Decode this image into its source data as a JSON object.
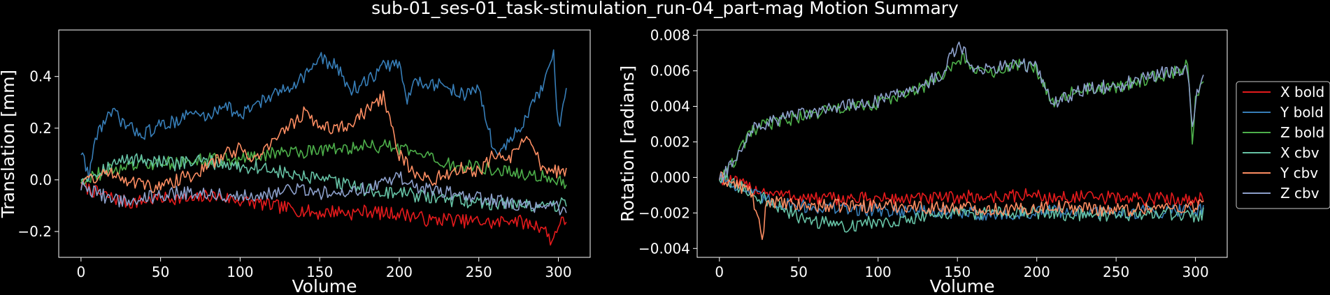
{
  "figure": {
    "title": "sub-01_ses-01_task-stimulation_run-04_part-mag Motion Summary"
  },
  "legend": {
    "placement": "right",
    "entries": [
      {
        "label": "X bold",
        "color": "#e41a1c"
      },
      {
        "label": "Y bold",
        "color": "#377eb8"
      },
      {
        "label": "Z bold",
        "color": "#4daf4a"
      },
      {
        "label": "X cbv",
        "color": "#66c2a5"
      },
      {
        "label": "Y cbv",
        "color": "#fc8d62"
      },
      {
        "label": "Z cbv",
        "color": "#8da0cb"
      }
    ]
  },
  "chart_data": [
    {
      "type": "line",
      "xlabel": "Volume",
      "ylabel": "Translation [mm]",
      "xlim": [
        -14,
        320
      ],
      "ylim": [
        -0.3,
        0.58
      ],
      "xticks": [
        0,
        50,
        100,
        150,
        200,
        250,
        300
      ],
      "yticks": [
        -0.2,
        0.0,
        0.2,
        0.4
      ],
      "ytick_labels": [
        "−0.2",
        "0.0",
        "0.2",
        "0.4"
      ],
      "grid": false,
      "x_range": [
        0,
        305
      ],
      "series": [
        {
          "name": "X bold",
          "color": "#e41a1c",
          "x": [
            0,
            10,
            20,
            30,
            40,
            50,
            60,
            70,
            80,
            90,
            100,
            110,
            120,
            130,
            140,
            150,
            160,
            170,
            180,
            190,
            200,
            210,
            220,
            230,
            240,
            250,
            260,
            270,
            280,
            290,
            296,
            300,
            305
          ],
          "y": [
            -0.02,
            -0.05,
            -0.07,
            -0.09,
            -0.08,
            -0.07,
            -0.07,
            -0.08,
            -0.06,
            -0.07,
            -0.08,
            -0.09,
            -0.1,
            -0.11,
            -0.12,
            -0.13,
            -0.12,
            -0.13,
            -0.12,
            -0.13,
            -0.13,
            -0.14,
            -0.16,
            -0.15,
            -0.16,
            -0.16,
            -0.17,
            -0.15,
            -0.17,
            -0.18,
            -0.24,
            -0.17,
            -0.16
          ]
        },
        {
          "name": "Y bold",
          "color": "#377eb8",
          "x": [
            0,
            5,
            10,
            15,
            20,
            30,
            40,
            50,
            60,
            70,
            80,
            90,
            100,
            110,
            120,
            130,
            140,
            150,
            160,
            170,
            180,
            190,
            200,
            205,
            210,
            220,
            230,
            240,
            250,
            260,
            270,
            280,
            290,
            297,
            300,
            305
          ],
          "y": [
            0.11,
            0.02,
            0.18,
            0.23,
            0.26,
            0.2,
            0.18,
            0.21,
            0.23,
            0.26,
            0.24,
            0.3,
            0.24,
            0.3,
            0.32,
            0.36,
            0.4,
            0.47,
            0.44,
            0.35,
            0.38,
            0.44,
            0.45,
            0.3,
            0.39,
            0.37,
            0.36,
            0.33,
            0.35,
            0.1,
            0.15,
            0.24,
            0.36,
            0.48,
            0.2,
            0.33
          ]
        },
        {
          "name": "Z bold",
          "color": "#4daf4a",
          "x": [
            0,
            10,
            20,
            30,
            40,
            50,
            60,
            70,
            80,
            90,
            100,
            110,
            120,
            130,
            140,
            150,
            160,
            170,
            180,
            190,
            200,
            210,
            220,
            230,
            240,
            250,
            260,
            270,
            280,
            290,
            300,
            305
          ],
          "y": [
            0.0,
            0.02,
            0.04,
            0.05,
            0.06,
            0.06,
            0.07,
            0.07,
            0.08,
            0.08,
            0.08,
            0.09,
            0.1,
            0.11,
            0.11,
            0.12,
            0.12,
            0.12,
            0.13,
            0.13,
            0.12,
            0.1,
            0.08,
            0.06,
            0.05,
            0.05,
            0.04,
            0.03,
            0.02,
            0.01,
            0.0,
            -0.02
          ]
        },
        {
          "name": "X cbv",
          "color": "#66c2a5",
          "x": [
            0,
            10,
            20,
            30,
            40,
            50,
            60,
            70,
            80,
            90,
            100,
            110,
            120,
            130,
            140,
            150,
            160,
            170,
            180,
            190,
            200,
            210,
            220,
            230,
            240,
            250,
            260,
            270,
            280,
            290,
            300,
            305
          ],
          "y": [
            0.01,
            0.03,
            0.06,
            0.08,
            0.08,
            0.07,
            0.06,
            0.07,
            0.07,
            0.06,
            0.05,
            0.05,
            0.04,
            0.02,
            0.01,
            0.0,
            -0.01,
            -0.02,
            -0.04,
            -0.05,
            -0.05,
            -0.06,
            -0.07,
            -0.08,
            -0.08,
            -0.09,
            -0.09,
            -0.09,
            -0.1,
            -0.1,
            -0.1,
            -0.08
          ]
        },
        {
          "name": "Y cbv",
          "color": "#fc8d62",
          "x": [
            0,
            10,
            20,
            30,
            40,
            50,
            60,
            70,
            80,
            90,
            100,
            110,
            120,
            130,
            140,
            150,
            160,
            170,
            180,
            190,
            200,
            210,
            220,
            230,
            240,
            250,
            260,
            270,
            280,
            290,
            300,
            305
          ],
          "y": [
            0.0,
            0.01,
            0.03,
            0.0,
            -0.02,
            -0.03,
            0.0,
            0.02,
            0.05,
            0.1,
            0.12,
            0.08,
            0.15,
            0.2,
            0.26,
            0.21,
            0.2,
            0.22,
            0.27,
            0.32,
            0.1,
            0.02,
            0.0,
            0.02,
            0.05,
            0.03,
            0.1,
            0.08,
            0.16,
            0.05,
            0.03,
            0.04
          ]
        },
        {
          "name": "Z cbv",
          "color": "#8da0cb",
          "x": [
            0,
            10,
            20,
            30,
            40,
            50,
            60,
            70,
            80,
            90,
            100,
            110,
            120,
            130,
            140,
            150,
            160,
            170,
            180,
            190,
            200,
            210,
            220,
            230,
            240,
            250,
            260,
            270,
            280,
            290,
            300,
            305
          ],
          "y": [
            -0.03,
            -0.05,
            -0.08,
            -0.08,
            -0.07,
            -0.06,
            -0.05,
            -0.05,
            -0.05,
            -0.06,
            -0.06,
            -0.06,
            -0.05,
            -0.04,
            -0.04,
            -0.05,
            -0.05,
            -0.04,
            -0.03,
            -0.01,
            0.01,
            -0.03,
            -0.04,
            -0.05,
            -0.06,
            -0.07,
            -0.08,
            -0.09,
            -0.1,
            -0.1,
            -0.11,
            -0.11
          ]
        }
      ]
    },
    {
      "type": "line",
      "xlabel": "Volume",
      "ylabel": "Rotation [radians]",
      "xlim": [
        -14,
        320
      ],
      "ylim": [
        -0.0045,
        0.0083
      ],
      "xticks": [
        0,
        50,
        100,
        150,
        200,
        250,
        300
      ],
      "yticks": [
        -0.004,
        -0.002,
        0.0,
        0.002,
        0.004,
        0.006,
        0.008
      ],
      "ytick_labels": [
        "−0.004",
        "−0.002",
        "0.000",
        "0.002",
        "0.004",
        "0.006",
        "0.008"
      ],
      "grid": false,
      "x_range": [
        0,
        305
      ],
      "series": [
        {
          "name": "X bold",
          "color": "#e41a1c",
          "x": [
            0,
            10,
            20,
            30,
            40,
            50,
            60,
            70,
            80,
            90,
            100,
            110,
            120,
            130,
            140,
            150,
            160,
            170,
            180,
            190,
            200,
            210,
            220,
            230,
            240,
            250,
            260,
            270,
            280,
            290,
            300,
            305
          ],
          "y": [
            0.0,
            -0.0003,
            -0.0006,
            -0.0008,
            -0.001,
            -0.0011,
            -0.0012,
            -0.0012,
            -0.0012,
            -0.0012,
            -0.0012,
            -0.0012,
            -0.0012,
            -0.0012,
            -0.0012,
            -0.0011,
            -0.0011,
            -0.0011,
            -0.0011,
            -0.001,
            -0.001,
            -0.0012,
            -0.0011,
            -0.0011,
            -0.0012,
            -0.0011,
            -0.0012,
            -0.0012,
            -0.0012,
            -0.0012,
            -0.0012,
            -0.0012
          ]
        },
        {
          "name": "Y bold",
          "color": "#377eb8",
          "x": [
            0,
            10,
            20,
            30,
            40,
            50,
            60,
            70,
            80,
            90,
            100,
            110,
            120,
            130,
            140,
            150,
            160,
            170,
            180,
            190,
            200,
            210,
            220,
            230,
            240,
            250,
            260,
            270,
            280,
            290,
            300,
            305
          ],
          "y": [
            0.0,
            -0.0004,
            -0.0009,
            -0.0013,
            -0.0015,
            -0.0016,
            -0.0017,
            -0.0017,
            -0.0018,
            -0.0018,
            -0.0018,
            -0.0019,
            -0.0019,
            -0.0019,
            -0.002,
            -0.002,
            -0.002,
            -0.0021,
            -0.0021,
            -0.0021,
            -0.002,
            -0.0019,
            -0.0019,
            -0.002,
            -0.002,
            -0.002,
            -0.002,
            -0.0019,
            -0.0019,
            -0.0018,
            -0.0018,
            -0.0018
          ]
        },
        {
          "name": "Z bold",
          "color": "#4daf4a",
          "x": [
            0,
            5,
            10,
            15,
            20,
            25,
            30,
            40,
            50,
            60,
            70,
            80,
            90,
            100,
            110,
            120,
            130,
            140,
            150,
            155,
            160,
            170,
            180,
            190,
            200,
            205,
            210,
            220,
            230,
            240,
            250,
            260,
            270,
            280,
            290,
            295,
            298,
            300,
            305
          ],
          "y": [
            0.0,
            0.0003,
            0.001,
            0.0018,
            0.0025,
            0.0028,
            0.003,
            0.0032,
            0.0034,
            0.0036,
            0.0038,
            0.0039,
            0.004,
            0.0042,
            0.0045,
            0.0047,
            0.0052,
            0.0057,
            0.0065,
            0.0068,
            0.006,
            0.0058,
            0.0062,
            0.0063,
            0.0061,
            0.0052,
            0.0043,
            0.0047,
            0.005,
            0.005,
            0.005,
            0.0053,
            0.0056,
            0.0058,
            0.006,
            0.0065,
            0.0022,
            0.0042,
            0.0055
          ]
        },
        {
          "name": "X cbv",
          "color": "#66c2a5",
          "x": [
            0,
            10,
            20,
            30,
            40,
            50,
            60,
            70,
            80,
            90,
            100,
            110,
            120,
            130,
            140,
            150,
            160,
            170,
            180,
            190,
            200,
            210,
            220,
            230,
            240,
            250,
            260,
            270,
            280,
            290,
            300,
            305
          ],
          "y": [
            0.0,
            -0.0004,
            -0.0009,
            -0.0013,
            -0.0018,
            -0.0022,
            -0.0025,
            -0.0026,
            -0.0027,
            -0.0026,
            -0.0025,
            -0.0024,
            -0.0023,
            -0.0022,
            -0.0021,
            -0.002,
            -0.002,
            -0.002,
            -0.002,
            -0.002,
            -0.002,
            -0.002,
            -0.0021,
            -0.0021,
            -0.0021,
            -0.0021,
            -0.0021,
            -0.0021,
            -0.002,
            -0.0021,
            -0.0022,
            -0.002
          ]
        },
        {
          "name": "Y cbv",
          "color": "#fc8d62",
          "x": [
            0,
            10,
            20,
            27,
            30,
            40,
            50,
            60,
            70,
            80,
            90,
            100,
            110,
            120,
            130,
            140,
            150,
            160,
            170,
            180,
            190,
            200,
            210,
            220,
            230,
            240,
            250,
            260,
            270,
            280,
            290,
            300,
            305
          ],
          "y": [
            0.0,
            -0.0004,
            -0.0008,
            -0.0035,
            -0.0012,
            -0.0015,
            -0.0016,
            -0.0016,
            -0.0016,
            -0.0016,
            -0.0016,
            -0.0016,
            -0.0016,
            -0.0016,
            -0.0017,
            -0.0017,
            -0.0017,
            -0.0017,
            -0.0018,
            -0.0018,
            -0.0018,
            -0.0017,
            -0.0016,
            -0.0017,
            -0.0017,
            -0.0018,
            -0.0018,
            -0.0018,
            -0.0017,
            -0.0017,
            -0.0017,
            -0.0016,
            -0.0013
          ]
        },
        {
          "name": "Z cbv",
          "color": "#8da0cb",
          "x": [
            0,
            5,
            10,
            15,
            20,
            25,
            30,
            40,
            50,
            60,
            70,
            80,
            90,
            100,
            110,
            120,
            130,
            140,
            150,
            155,
            160,
            170,
            180,
            190,
            200,
            205,
            210,
            220,
            230,
            240,
            250,
            260,
            270,
            280,
            290,
            295,
            298,
            300,
            305
          ],
          "y": [
            0.0,
            0.0003,
            0.0011,
            0.0019,
            0.0026,
            0.0029,
            0.0031,
            0.0033,
            0.0035,
            0.0037,
            0.0039,
            0.004,
            0.0041,
            0.0043,
            0.0046,
            0.0048,
            0.0053,
            0.0058,
            0.0075,
            0.007,
            0.0063,
            0.006,
            0.0063,
            0.0064,
            0.0062,
            0.0053,
            0.0042,
            0.0046,
            0.0049,
            0.0051,
            0.0051,
            0.0054,
            0.0057,
            0.0059,
            0.0061,
            0.0062,
            0.0028,
            0.0045,
            0.0054
          ]
        }
      ]
    }
  ]
}
